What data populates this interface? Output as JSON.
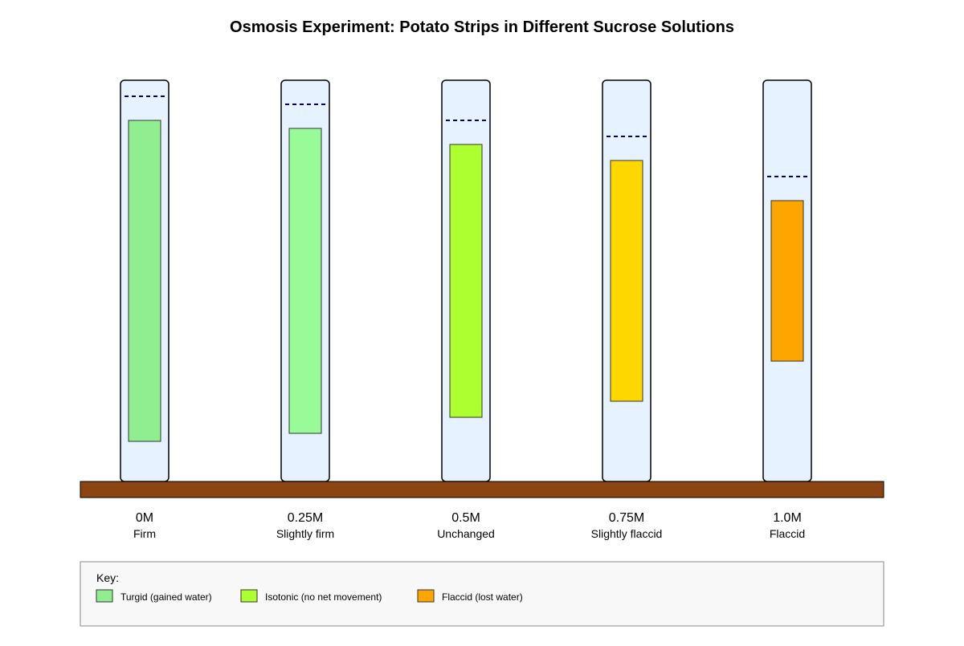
{
  "title": "Osmosis Experiment: Potato Strips in Different Sucrose Solutions",
  "tubes": [
    {
      "concentration": "0M",
      "state": "Firm",
      "color": "#90ee90"
    },
    {
      "concentration": "0.25M",
      "state": "Slightly firm",
      "color": "#98fb98"
    },
    {
      "concentration": "0.5M",
      "state": "Unchanged",
      "color": "#adff2f"
    },
    {
      "concentration": "0.75M",
      "state": "Slightly flaccid",
      "color": "#ffd700"
    },
    {
      "concentration": "1.0M",
      "state": "Flaccid",
      "color": "#ffa500"
    }
  ],
  "key": {
    "title": "Key:",
    "items": [
      {
        "label": "Turgid (gained water)",
        "color": "#90ee90"
      },
      {
        "label": "Isotonic (no net movement)",
        "color": "#adff2f"
      },
      {
        "label": "Flaccid (lost water)",
        "color": "#ffa500"
      }
    ]
  },
  "colors": {
    "tube_fill": "#e6f2ff",
    "water_line": "#000080",
    "bench": "#8b4513",
    "key_background": "#f8f8f8"
  }
}
